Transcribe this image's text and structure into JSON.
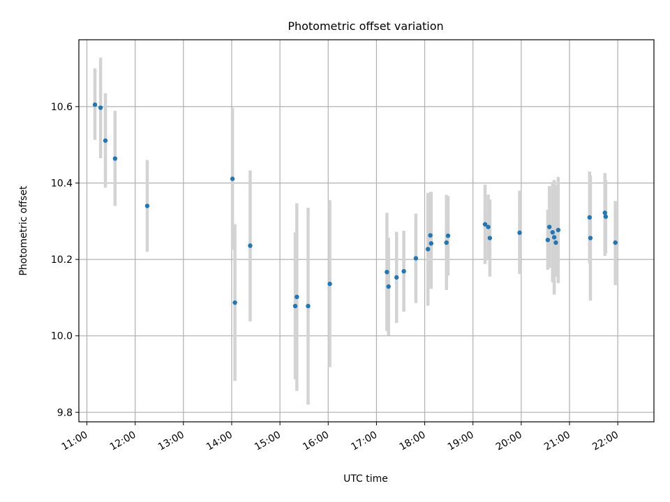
{
  "chart_data": {
    "type": "scatter",
    "title": "Photometric offset variation",
    "xlabel": "UTC time",
    "ylabel": "Photometric offset",
    "xlim": [
      "10:50",
      "22:45"
    ],
    "ylim": [
      9.775,
      10.775
    ],
    "x_ticks": [
      "11:00",
      "12:00",
      "13:00",
      "14:00",
      "15:00",
      "16:00",
      "17:00",
      "18:00",
      "19:00",
      "20:00",
      "21:00",
      "22:00"
    ],
    "y_ticks": [
      9.8,
      10.0,
      10.2,
      10.4,
      10.6
    ],
    "y_tick_labels": [
      "9.8",
      "10.0",
      "10.2",
      "10.4",
      "10.6"
    ],
    "grid": true,
    "colors": {
      "point": "#1f77b4",
      "errorbar": "#d3d3d3",
      "grid": "#b0b0b0"
    },
    "series": [
      {
        "points": [
          {
            "t": "11:10",
            "y": 10.605,
            "lo": 10.513,
            "hi": 10.7
          },
          {
            "t": "11:17",
            "y": 10.597,
            "lo": 10.465,
            "hi": 10.728
          },
          {
            "t": "11:23",
            "y": 10.511,
            "lo": 10.388,
            "hi": 10.635
          },
          {
            "t": "11:35",
            "y": 10.464,
            "lo": 10.34,
            "hi": 10.589
          },
          {
            "t": "12:15",
            "y": 10.34,
            "lo": 10.22,
            "hi": 10.46
          },
          {
            "t": "14:01",
            "y": 10.411,
            "lo": 10.225,
            "hi": 10.597
          },
          {
            "t": "14:04",
            "y": 10.087,
            "lo": 9.882,
            "hi": 10.292
          },
          {
            "t": "14:23",
            "y": 10.236,
            "lo": 10.038,
            "hi": 10.433
          },
          {
            "t": "15:19",
            "y": 10.078,
            "lo": 9.886,
            "hi": 10.271
          },
          {
            "t": "15:21",
            "y": 10.102,
            "lo": 9.856,
            "hi": 10.347
          },
          {
            "t": "15:35",
            "y": 10.078,
            "lo": 9.82,
            "hi": 10.335
          },
          {
            "t": "16:02",
            "y": 10.136,
            "lo": 9.918,
            "hi": 10.355
          },
          {
            "t": "17:13",
            "y": 10.167,
            "lo": 10.013,
            "hi": 10.322
          },
          {
            "t": "17:15",
            "y": 10.129,
            "lo": 10.001,
            "hi": 10.257
          },
          {
            "t": "17:25",
            "y": 10.153,
            "lo": 10.034,
            "hi": 10.272
          },
          {
            "t": "17:34",
            "y": 10.169,
            "lo": 10.063,
            "hi": 10.275
          },
          {
            "t": "17:49",
            "y": 10.203,
            "lo": 10.086,
            "hi": 10.32
          },
          {
            "t": "18:04",
            "y": 10.227,
            "lo": 10.079,
            "hi": 10.374
          },
          {
            "t": "18:07",
            "y": 10.263,
            "lo": 10.15,
            "hi": 10.376
          },
          {
            "t": "18:08",
            "y": 10.242,
            "lo": 10.123,
            "hi": 10.377
          },
          {
            "t": "18:27",
            "y": 10.244,
            "lo": 10.12,
            "hi": 10.369
          },
          {
            "t": "18:29",
            "y": 10.262,
            "lo": 10.158,
            "hi": 10.366
          },
          {
            "t": "19:15",
            "y": 10.292,
            "lo": 10.188,
            "hi": 10.396
          },
          {
            "t": "19:19",
            "y": 10.285,
            "lo": 10.2,
            "hi": 10.37
          },
          {
            "t": "19:21",
            "y": 10.256,
            "lo": 10.155,
            "hi": 10.357
          },
          {
            "t": "19:58",
            "y": 10.27,
            "lo": 10.162,
            "hi": 10.38
          },
          {
            "t": "20:33",
            "y": 10.251,
            "lo": 10.173,
            "hi": 10.33
          },
          {
            "t": "20:35",
            "y": 10.285,
            "lo": 10.178,
            "hi": 10.392
          },
          {
            "t": "20:39",
            "y": 10.271,
            "lo": 10.14,
            "hi": 10.403
          },
          {
            "t": "20:41",
            "y": 10.258,
            "lo": 10.108,
            "hi": 10.408
          },
          {
            "t": "20:43",
            "y": 10.244,
            "lo": 10.155,
            "hi": 10.395
          },
          {
            "t": "20:46",
            "y": 10.277,
            "lo": 10.138,
            "hi": 10.416
          },
          {
            "t": "21:25",
            "y": 10.31,
            "lo": 10.19,
            "hi": 10.43
          },
          {
            "t": "21:26",
            "y": 10.256,
            "lo": 10.092,
            "hi": 10.42
          },
          {
            "t": "21:44",
            "y": 10.322,
            "lo": 10.209,
            "hi": 10.426
          },
          {
            "t": "21:45",
            "y": 10.312,
            "lo": 10.216,
            "hi": 10.408
          },
          {
            "t": "21:57",
            "y": 10.244,
            "lo": 10.133,
            "hi": 10.353
          }
        ]
      }
    ]
  }
}
